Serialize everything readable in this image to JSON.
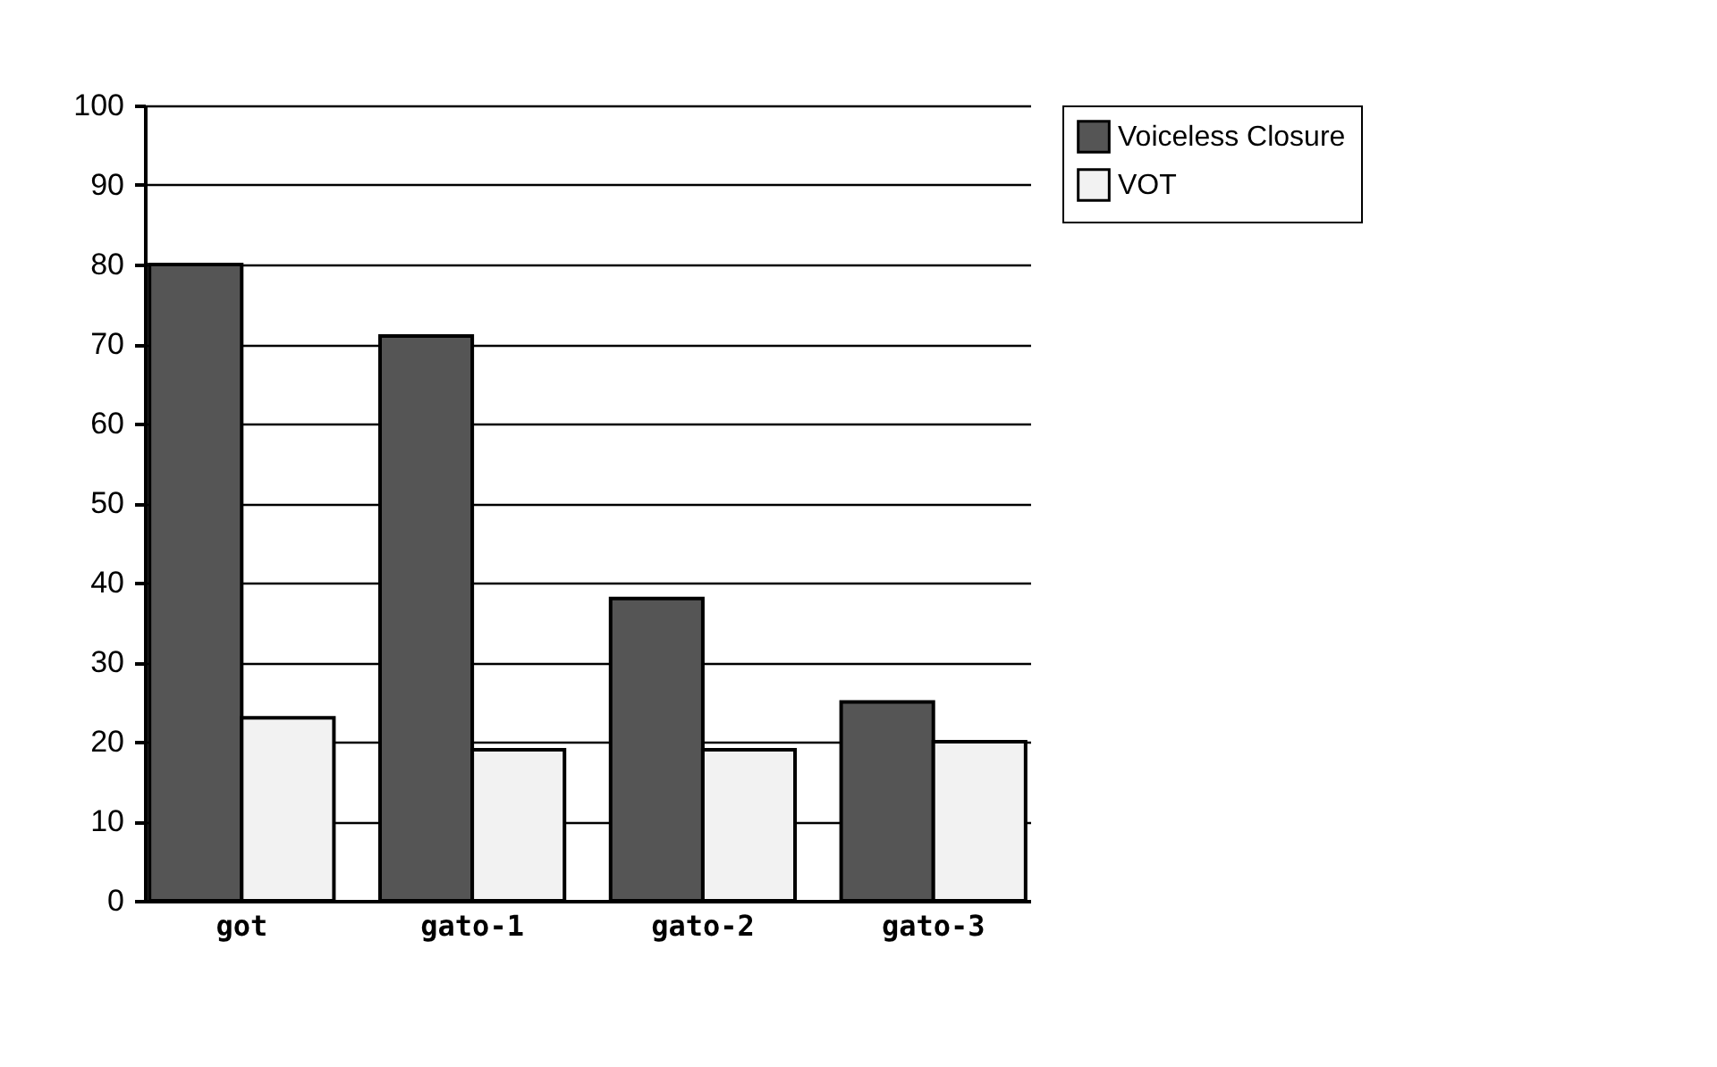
{
  "chart_data": {
    "type": "bar",
    "categories": [
      "got",
      "gato-1",
      "gato-2",
      "gato-3"
    ],
    "series": [
      {
        "name": "Voiceless Closure",
        "color": "#555555",
        "values": [
          80,
          71,
          38,
          25
        ]
      },
      {
        "name": "VOT",
        "color": "#f2f2f2",
        "values": [
          23,
          19,
          19,
          20
        ]
      }
    ],
    "ylim": [
      0,
      100
    ],
    "yticks": [
      0,
      10,
      20,
      30,
      40,
      50,
      60,
      70,
      80,
      90,
      100
    ],
    "grid": "y",
    "legend": "top right"
  }
}
